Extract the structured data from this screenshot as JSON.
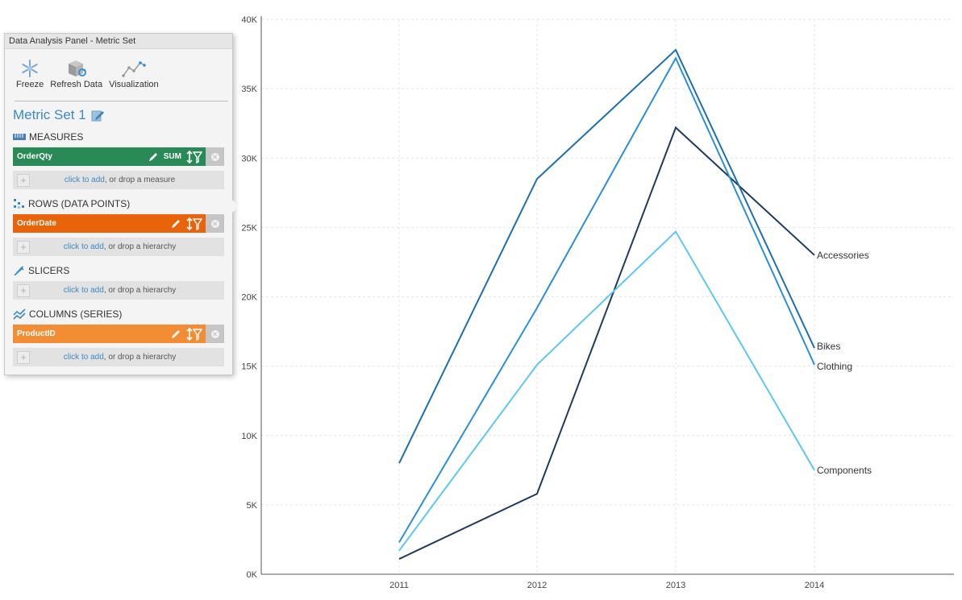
{
  "panel": {
    "title": "Data Analysis Panel - Metric Set",
    "toolbar": [
      {
        "label": "Freeze",
        "icon": "snowflake-icon"
      },
      {
        "label": "Refresh Data",
        "icon": "refresh-data-icon"
      },
      {
        "label": "Visualization",
        "icon": "visualization-icon"
      }
    ],
    "metric_set_title": "Metric Set 1",
    "sections": {
      "measures": {
        "title": "MEASURES",
        "item": {
          "name": "OrderQty",
          "aggregation": "SUM",
          "color": "#2a8a57"
        },
        "drop_link": "click to add",
        "drop_rest": ", or drop a measure"
      },
      "rows": {
        "title": "ROWS (DATA POINTS)",
        "item": {
          "name": "OrderDate",
          "color": "#e8630a"
        },
        "drop_link": "click to add",
        "drop_rest": ", or drop a hierarchy"
      },
      "slicers": {
        "title": "SLICERS",
        "drop_link": "click to add",
        "drop_rest": ", or drop a hierarchy"
      },
      "columns": {
        "title": "COLUMNS (SERIES)",
        "item": {
          "name": "ProductID",
          "color": "#f28c35"
        },
        "drop_link": "click to add",
        "drop_rest": ", or drop a hierarchy"
      }
    }
  },
  "chart_data": {
    "type": "line",
    "title": "",
    "xlabel": "",
    "ylabel": "",
    "categories": [
      "2011",
      "2012",
      "2013",
      "2014"
    ],
    "ylim": [
      0,
      40000
    ],
    "yticks": [
      0,
      5000,
      10000,
      15000,
      20000,
      25000,
      30000,
      35000,
      40000
    ],
    "ytick_labels": [
      "0K",
      "5K",
      "10K",
      "15K",
      "20K",
      "25K",
      "30K",
      "35K",
      "40K"
    ],
    "grid": true,
    "legend": "inline labels at line ends",
    "series": [
      {
        "name": "Accessories",
        "values": [
          1100,
          5800,
          32200,
          23000
        ],
        "color": "#1f3a5f"
      },
      {
        "name": "Bikes",
        "values": [
          8000,
          28500,
          37800,
          16300
        ],
        "color": "#1e6fae"
      },
      {
        "name": "Clothing",
        "values": [
          2300,
          19200,
          37200,
          15100
        ],
        "color": "#2b8fd8"
      },
      {
        "name": "Components",
        "values": [
          1700,
          15100,
          24700,
          7500
        ],
        "color": "#5cc7f2"
      }
    ]
  }
}
